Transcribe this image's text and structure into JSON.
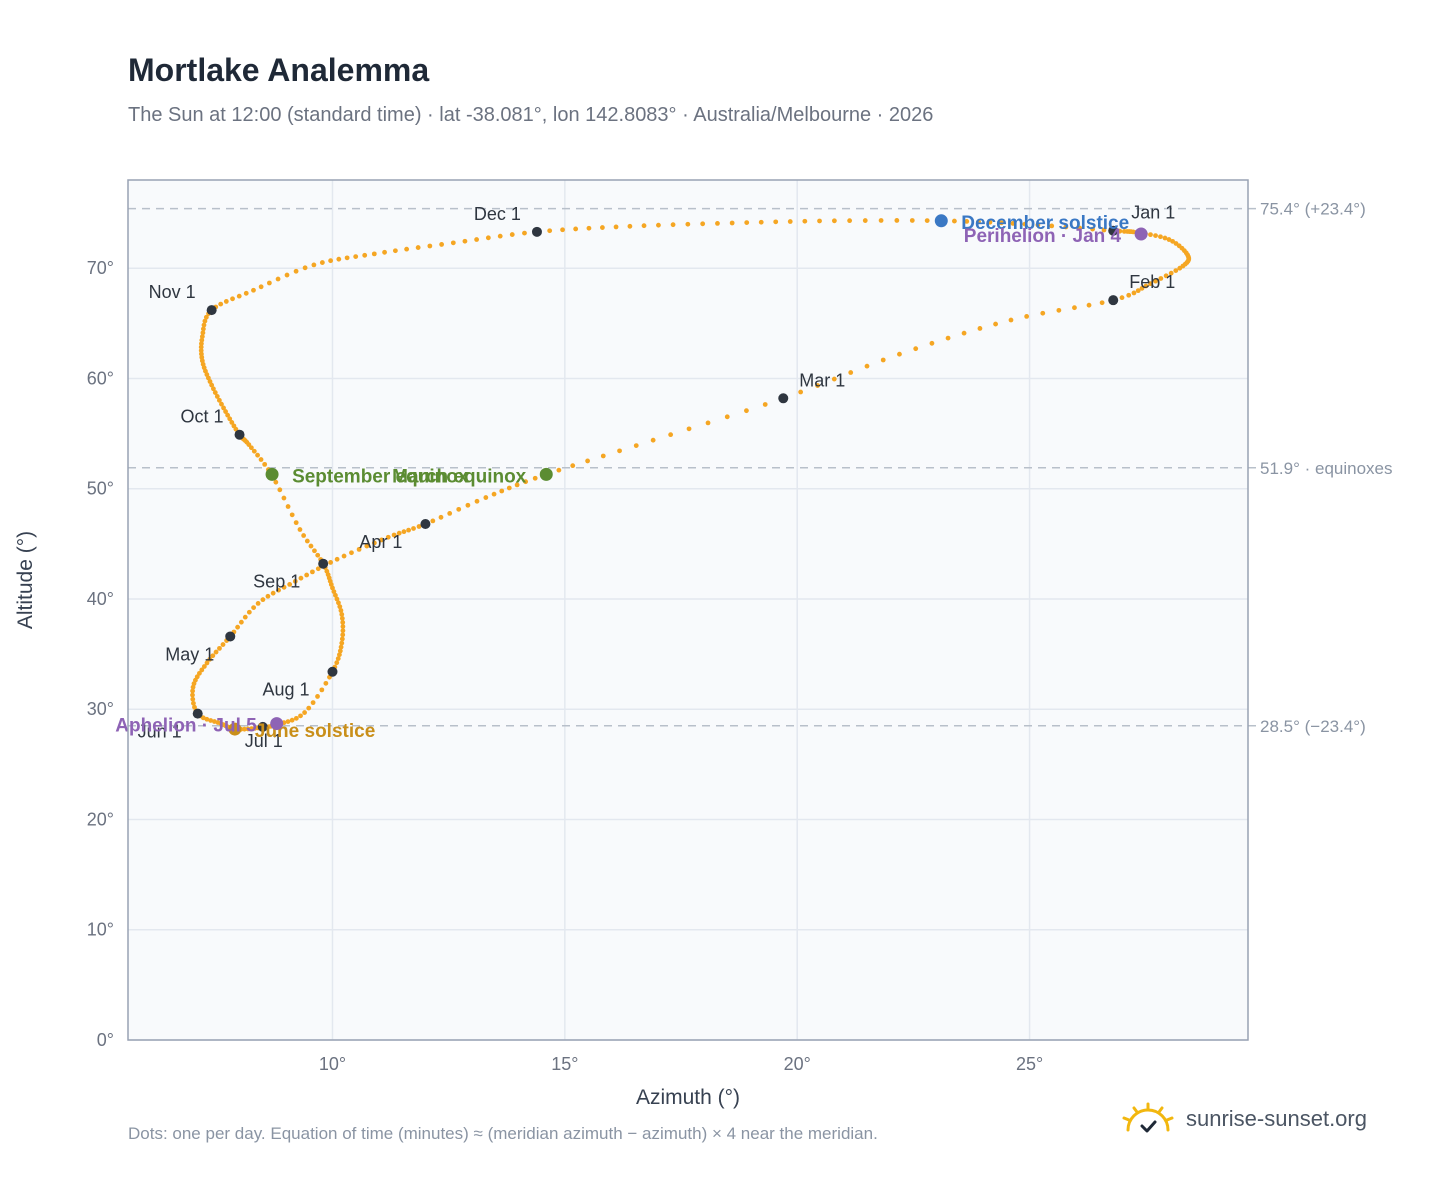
{
  "title": "Mortlake Analemma",
  "subtitle": "The Sun at 12:00 (standard time) · lat -38.081°, lon 142.8083° · Australia/Melbourne · 2026",
  "footnote": "Dots: one per day. Equation of time (minutes) ≈ (meridian azimuth − azimuth) × 4 near the meridian.",
  "brand": "sunrise-sunset.org",
  "colors": {
    "curve": "#f5a623",
    "month_marker": "#2f3640",
    "equinox": "#5b8c32",
    "december_solstice": "#3a78c4",
    "june_solstice": "#c98f1a",
    "apsis": "#8e63b5",
    "plot_bg": "#f8fafc",
    "grid": "#e3e8ef",
    "reference_line": "#b8c0ca",
    "frame": "#98a2b3",
    "brand_icon": "#f2b70f"
  },
  "icons": {
    "brand": "sun-check-icon"
  },
  "chart_data": {
    "type": "scatter",
    "xlabel": "Azimuth (°)",
    "ylabel": "Altitude (°)",
    "xlim": [
      5.6,
      29.7
    ],
    "ylim": [
      0,
      78
    ],
    "xticks": [
      10,
      15,
      20,
      25
    ],
    "yticks": [
      0,
      10,
      20,
      30,
      40,
      50,
      60,
      70
    ],
    "tick_suffix": "°",
    "grid": true,
    "path": [
      [
        26.8,
        73.4
      ],
      [
        27.3,
        73.25
      ],
      [
        28.0,
        72.6
      ],
      [
        28.4,
        71.2
      ],
      [
        28.3,
        70.2
      ],
      [
        27.6,
        68.6
      ],
      [
        26.8,
        67.1
      ],
      [
        24.6,
        65.3
      ],
      [
        22.2,
        62.2
      ],
      [
        19.7,
        58.2
      ],
      [
        16.9,
        54.4
      ],
      [
        14.6,
        51.3
      ],
      [
        13.3,
        49.2
      ],
      [
        12.0,
        46.8
      ],
      [
        11.2,
        45.6
      ],
      [
        10.1,
        43.6
      ],
      [
        9.2,
        41.6
      ],
      [
        8.4,
        39.6
      ],
      [
        7.8,
        36.6
      ],
      [
        7.3,
        34.2
      ],
      [
        7.0,
        32.0
      ],
      [
        7.1,
        29.6
      ],
      [
        7.6,
        28.7
      ],
      [
        7.9,
        28.2
      ],
      [
        8.4,
        28.3
      ],
      [
        8.8,
        28.6
      ],
      [
        9.4,
        29.7
      ],
      [
        10.0,
        33.4
      ],
      [
        10.2,
        36.0
      ],
      [
        10.2,
        38.6
      ],
      [
        10.0,
        41.0
      ],
      [
        9.8,
        43.2
      ],
      [
        9.3,
        46.3
      ],
      [
        8.7,
        51.2
      ],
      [
        8.2,
        54.0
      ],
      [
        8.0,
        54.9
      ],
      [
        7.7,
        57.0
      ],
      [
        7.4,
        59.4
      ],
      [
        7.2,
        61.6
      ],
      [
        7.2,
        63.8
      ],
      [
        7.4,
        66.2
      ],
      [
        8.3,
        68.0
      ],
      [
        9.6,
        70.3
      ],
      [
        10.9,
        71.3
      ],
      [
        12.6,
        72.3
      ],
      [
        14.4,
        73.3
      ],
      [
        16.4,
        73.8
      ],
      [
        18.6,
        74.1
      ],
      [
        20.8,
        74.3
      ],
      [
        23.1,
        74.3
      ],
      [
        24.9,
        74.0
      ],
      [
        26.8,
        73.4
      ]
    ],
    "months": [
      {
        "label": "Jan 1",
        "x": 26.8,
        "y": 73.4
      },
      {
        "label": "Feb 1",
        "x": 26.8,
        "y": 67.1
      },
      {
        "label": "Mar 1",
        "x": 19.7,
        "y": 58.2
      },
      {
        "label": "Apr 1",
        "x": 12.0,
        "y": 46.8
      },
      {
        "label": "May 1",
        "x": 7.8,
        "y": 36.6
      },
      {
        "label": "Jun 1",
        "x": 7.1,
        "y": 29.6
      },
      {
        "label": "Jul 1",
        "x": 8.5,
        "y": 28.4
      },
      {
        "label": "Aug 1",
        "x": 10.0,
        "y": 33.4
      },
      {
        "label": "Sep 1",
        "x": 9.8,
        "y": 43.2
      },
      {
        "label": "Oct 1",
        "x": 8.0,
        "y": 54.9
      },
      {
        "label": "Nov 1",
        "x": 7.4,
        "y": 66.2
      },
      {
        "label": "Dec 1",
        "x": 14.4,
        "y": 73.3
      }
    ],
    "events": [
      {
        "label": "December solstice",
        "x": 23.1,
        "y": 74.3,
        "color": "#3a78c4"
      },
      {
        "label": "Perihelion · Jan 4",
        "x": 27.4,
        "y": 73.1,
        "color": "#8e63b5"
      },
      {
        "label": "March equinox",
        "x": 14.6,
        "y": 51.3,
        "color": "#5b8c32"
      },
      {
        "label": "September equinox",
        "x": 8.7,
        "y": 51.3,
        "color": "#5b8c32"
      },
      {
        "label": "June solstice",
        "x": 7.9,
        "y": 28.2,
        "color": "#c98f1a"
      },
      {
        "label": "Aphelion · Jul 5",
        "x": 8.8,
        "y": 28.7,
        "color": "#8e63b5"
      }
    ],
    "reference_lines": [
      {
        "y": 75.4,
        "label": "75.4° (+23.4°)"
      },
      {
        "y": 51.9,
        "label": "51.9° · equinoxes"
      },
      {
        "y": 28.5,
        "label": "28.5° (−23.4°)"
      }
    ]
  }
}
